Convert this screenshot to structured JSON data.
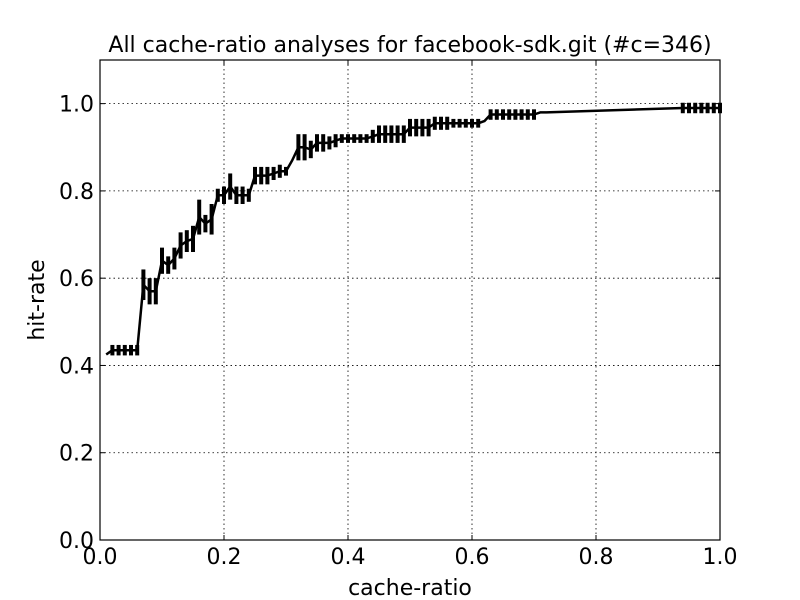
{
  "chart_data": {
    "type": "line",
    "title": "All cache-ratio analyses for facebook-sdk.git (#c=346)",
    "xlabel": "cache-ratio",
    "ylabel": "hit-rate",
    "xlim": [
      0.0,
      1.0
    ],
    "ylim": [
      0.0,
      1.1
    ],
    "xticks": [
      "0.0",
      "0.2",
      "0.4",
      "0.6",
      "0.8",
      "1.0"
    ],
    "yticks": [
      "0.0",
      "0.2",
      "0.4",
      "0.6",
      "0.8",
      "1.0"
    ],
    "grid": true,
    "line_color": "#000000",
    "series": [
      {
        "x": [
          0.01,
          0.02,
          0.03,
          0.04,
          0.05,
          0.06,
          0.07,
          0.08,
          0.09,
          0.1,
          0.11,
          0.12,
          0.13,
          0.14,
          0.15,
          0.16,
          0.17,
          0.18,
          0.19,
          0.2,
          0.21,
          0.22,
          0.23,
          0.24,
          0.25,
          0.26,
          0.27,
          0.28,
          0.29,
          0.3,
          0.31,
          0.32,
          0.33,
          0.34,
          0.35,
          0.36,
          0.37,
          0.38,
          0.39,
          0.4,
          0.41,
          0.42,
          0.43,
          0.44,
          0.45,
          0.46,
          0.47,
          0.48,
          0.49,
          0.5,
          0.51,
          0.52,
          0.53,
          0.54,
          0.55,
          0.56,
          0.57,
          0.58,
          0.59,
          0.6,
          0.61,
          0.62,
          0.63,
          0.64,
          0.65,
          0.66,
          0.67,
          0.68,
          0.69,
          0.7,
          0.71,
          0.72,
          0.94,
          0.95,
          0.96,
          0.97,
          0.98,
          0.99,
          1.0
        ],
        "y": [
          0.425,
          0.435,
          0.435,
          0.435,
          0.435,
          0.435,
          0.585,
          0.57,
          0.57,
          0.64,
          0.63,
          0.645,
          0.675,
          0.685,
          0.69,
          0.74,
          0.725,
          0.735,
          0.79,
          0.79,
          0.81,
          0.79,
          0.79,
          0.79,
          0.835,
          0.835,
          0.835,
          0.84,
          0.845,
          0.845,
          0.87,
          0.9,
          0.9,
          0.895,
          0.91,
          0.91,
          0.91,
          0.915,
          0.92,
          0.92,
          0.92,
          0.92,
          0.92,
          0.925,
          0.93,
          0.93,
          0.93,
          0.93,
          0.93,
          0.945,
          0.945,
          0.945,
          0.945,
          0.955,
          0.955,
          0.955,
          0.955,
          0.955,
          0.955,
          0.955,
          0.955,
          0.96,
          0.975,
          0.975,
          0.975,
          0.975,
          0.975,
          0.975,
          0.975,
          0.975,
          0.98,
          0.98,
          0.99,
          0.99,
          0.99,
          0.99,
          0.99,
          0.99,
          0.99
        ],
        "err": [
          0.0,
          0.012,
          0.012,
          0.012,
          0.012,
          0.012,
          0.035,
          0.03,
          0.03,
          0.03,
          0.02,
          0.025,
          0.03,
          0.025,
          0.03,
          0.04,
          0.02,
          0.035,
          0.015,
          0.02,
          0.03,
          0.02,
          0.02,
          0.015,
          0.02,
          0.02,
          0.02,
          0.015,
          0.015,
          0.01,
          0.0,
          0.03,
          0.03,
          0.02,
          0.02,
          0.02,
          0.015,
          0.015,
          0.01,
          0.01,
          0.01,
          0.01,
          0.01,
          0.015,
          0.02,
          0.02,
          0.02,
          0.02,
          0.02,
          0.02,
          0.02,
          0.02,
          0.02,
          0.015,
          0.015,
          0.015,
          0.01,
          0.01,
          0.01,
          0.01,
          0.01,
          0.0,
          0.012,
          0.012,
          0.012,
          0.012,
          0.012,
          0.012,
          0.012,
          0.012,
          0.0,
          0.0,
          0.012,
          0.012,
          0.012,
          0.012,
          0.012,
          0.012,
          0.012
        ]
      }
    ]
  }
}
